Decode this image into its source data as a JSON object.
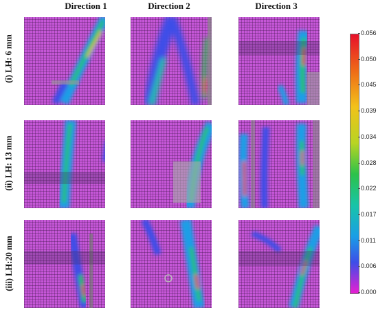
{
  "columns": [
    "Direction 1",
    "Direction 2",
    "Direction 3"
  ],
  "rows": [
    "(i) LH: 6 mm",
    "(ii) LH: 13 mm",
    "(iii) LH:20 mm"
  ],
  "colorbar": {
    "ticks": [
      "0.056",
      "0.050",
      "0.045",
      "0.039",
      "0.034",
      "0.028",
      "0.022",
      "0.017",
      "0.011",
      "0.006",
      "0.000"
    ],
    "colors": [
      "#e8102a",
      "#f2c21a",
      "#2cc24a",
      "#1a9ee6",
      "#e81ed2"
    ]
  }
}
